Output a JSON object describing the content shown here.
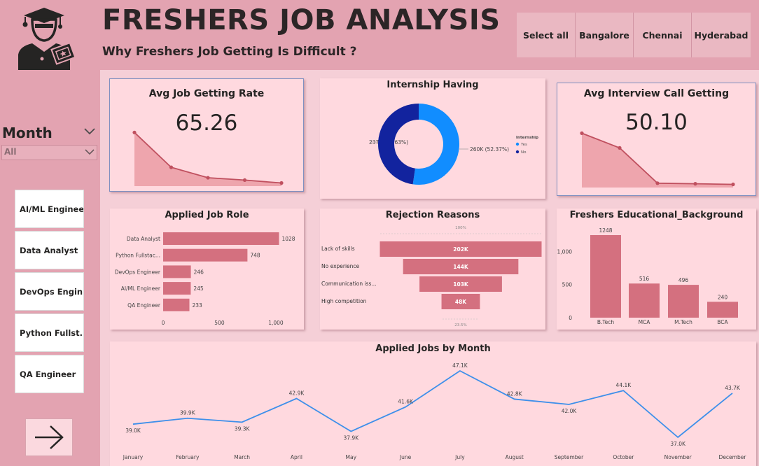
{
  "header": {
    "title": "FRESHERS JOB ANALYSIS",
    "subtitle": "Why Freshers Job Getting Is Difficult ?",
    "cities": [
      "Select all",
      "Bangalore",
      "Chennai",
      "Hyderabad"
    ]
  },
  "sidebar": {
    "month_label": "Month",
    "month_value": "All",
    "roles": [
      "AI/ML Engineer",
      "Data Analyst",
      "DevOps Engin...",
      "Python Fullst...",
      "QA Engineer"
    ]
  },
  "colors": {
    "page_bg": "#e3a3b1",
    "panel_bg": "#ffd9df",
    "bar_pink": "#d4707f",
    "kpi_line": "#c0505f",
    "donut_yes": "#118dff",
    "donut_no": "#12239e",
    "line_blue": "#3d8fea"
  },
  "kpi_job_rate": {
    "title": "Avg Job Getting Rate",
    "value": "65.26"
  },
  "kpi_interview": {
    "title": "Avg Interview Call Getting",
    "value": "50.10"
  },
  "internship": {
    "title": "Internship Having",
    "legend_title": "Internship",
    "legend": [
      "Yes",
      "No"
    ],
    "label_no": "237K (47.63%)",
    "label_yes": "260K (52.37%)"
  },
  "applied_role": {
    "title": "Applied Job Role"
  },
  "rejection": {
    "title": "Rejection Reasons",
    "top_label": "100%",
    "bottom_label": "23.5%"
  },
  "education": {
    "title": "Freshers Educational_Background"
  },
  "monthly": {
    "title": "Applied Jobs by Month"
  },
  "chart_data": [
    {
      "type": "area",
      "name": "Avg Job Getting Rate sparkline",
      "values": [
        0.9,
        0.3,
        0.12,
        0.08,
        0.03
      ],
      "ylim": [
        0,
        1
      ]
    },
    {
      "type": "area",
      "name": "Avg Interview Call Getting sparkline",
      "values": [
        0.9,
        0.65,
        0.05,
        0.04,
        0.03
      ],
      "ylim": [
        0,
        1
      ]
    },
    {
      "type": "pie",
      "title": "Internship Having",
      "categories": [
        "Yes",
        "No"
      ],
      "values": [
        260,
        237
      ],
      "labels": [
        "260K (52.37%)",
        "237K (47.63%)"
      ],
      "legend": "right"
    },
    {
      "type": "bar",
      "orientation": "horizontal",
      "title": "Applied Job Role",
      "categories": [
        "Data Analyst",
        "Python Fullstac...",
        "DevOps Engineer",
        "AI/ML Engineer",
        "QA Engineer"
      ],
      "values": [
        1028,
        748,
        246,
        245,
        233
      ],
      "xticks": [
        "0",
        "500",
        "1,000"
      ],
      "xlim": [
        0,
        1050
      ]
    },
    {
      "type": "bar",
      "orientation": "funnel",
      "title": "Rejection Reasons",
      "categories": [
        "Lack of skills",
        "No experience",
        "Communication iss...",
        "High competition"
      ],
      "values": [
        202,
        144,
        103,
        48
      ],
      "labels": [
        "202K",
        "144K",
        "103K",
        "48K"
      ]
    },
    {
      "type": "bar",
      "title": "Freshers Educational_Background",
      "categories": [
        "B.Tech",
        "MCA",
        "M.Tech",
        "BCA"
      ],
      "values": [
        1248,
        516,
        496,
        240
      ],
      "yticks": [
        "0",
        "500",
        "1,000"
      ],
      "ylim": [
        0,
        1300
      ]
    },
    {
      "type": "line",
      "title": "Applied Jobs by Month",
      "categories": [
        "January",
        "February",
        "March",
        "April",
        "May",
        "June",
        "July",
        "August",
        "September",
        "October",
        "November",
        "December"
      ],
      "values": [
        39.0,
        39.9,
        39.3,
        42.9,
        37.9,
        41.6,
        47.1,
        42.8,
        42.0,
        44.1,
        37.0,
        43.7
      ],
      "labels": [
        "39.0K",
        "39.9K",
        "39.3K",
        "42.9K",
        "37.9K",
        "41.6K",
        "47.1K",
        "42.8K",
        "42.0K",
        "44.1K",
        "37.0K",
        "43.7K"
      ]
    }
  ]
}
